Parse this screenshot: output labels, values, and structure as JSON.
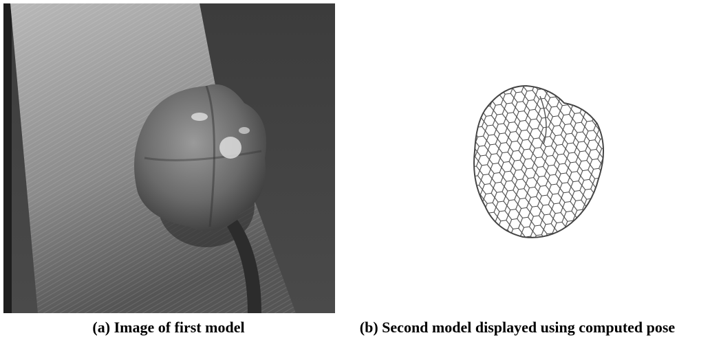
{
  "figure": {
    "panels": [
      {
        "caption": "(a) Image of first model"
      },
      {
        "caption": "(b) Second model displayed using computed pose"
      }
    ]
  }
}
